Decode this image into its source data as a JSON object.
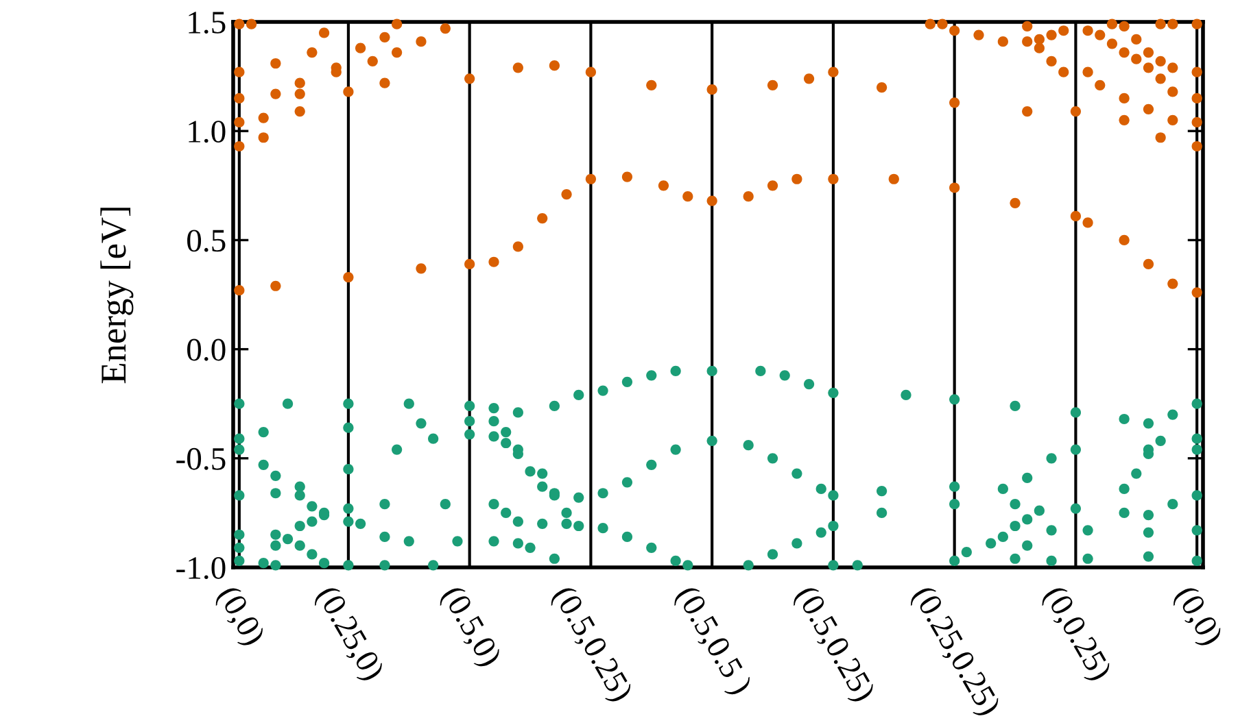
{
  "chart_data": {
    "type": "scatter",
    "ylabel": "Energy [eV]",
    "marker": "circle",
    "grid": "x",
    "ylim": [
      -1.0,
      1.5
    ],
    "categories": [
      "(0,0)",
      null,
      null,
      null,
      null,
      null,
      null,
      null,
      null,
      "(0.25,0)",
      null,
      null,
      null,
      null,
      null,
      null,
      null,
      null,
      null,
      "(0.5,0)",
      null,
      null,
      null,
      null,
      null,
      null,
      null,
      null,
      null,
      "(0.5,0.25)",
      null,
      null,
      null,
      null,
      null,
      null,
      null,
      null,
      null,
      "(0.5,0.5 )",
      null,
      null,
      null,
      null,
      null,
      null,
      null,
      null,
      null,
      "(0.5,0.25)",
      null,
      null,
      null,
      null,
      null,
      null,
      null,
      null,
      null,
      "(0.25,0.25)",
      null,
      null,
      null,
      null,
      null,
      null,
      null,
      null,
      null,
      "(0,0.25)",
      null,
      null,
      null,
      null,
      null,
      null,
      null,
      null,
      null,
      "(0,0)"
    ],
    "yticks": [
      {
        "value": -1.0,
        "label": "-1.0"
      },
      {
        "value": -0.5,
        "label": "-0.5"
      },
      {
        "value": 0.0,
        "label": "0.0"
      },
      0.5,
      {
        "value": 1.0,
        "label": "1.0"
      },
      1.5
    ],
    "series": [
      {
        "color": "#d95f02",
        "values": [
          0.27,
          null,
          null,
          0.29,
          null,
          null,
          null,
          null,
          null,
          0.33,
          null,
          null,
          null,
          null,
          null,
          0.37,
          null,
          null,
          null,
          0.39,
          null,
          0.4,
          null,
          0.47,
          null,
          0.6,
          null,
          0.71,
          null,
          0.78,
          null,
          null,
          0.79,
          null,
          null,
          0.75,
          null,
          0.7,
          null,
          0.68,
          null,
          null,
          0.7,
          null,
          0.75,
          null,
          0.78,
          null,
          null,
          0.78,
          null,
          null,
          null,
          null,
          0.78,
          null,
          null,
          null,
          null,
          0.74,
          null,
          null,
          null,
          null,
          0.67,
          null,
          null,
          null,
          null,
          0.61,
          0.58,
          null,
          null,
          0.5,
          null,
          0.39,
          null,
          0.3,
          null,
          0.26
        ]
      },
      {
        "color": "#d95f02",
        "values": [
          0.93,
          null,
          0.97,
          null,
          null,
          1.09,
          null,
          null,
          null,
          1.18,
          null,
          null,
          1.22,
          null,
          null,
          null,
          null,
          null,
          null,
          1.24,
          null,
          null,
          null,
          1.29,
          null,
          null,
          1.3,
          null,
          null,
          1.27,
          null,
          null,
          null,
          null,
          1.21,
          null,
          null,
          null,
          null,
          1.19,
          null,
          null,
          null,
          null,
          1.21,
          null,
          null,
          1.24,
          null,
          1.27,
          null,
          null,
          null,
          1.2,
          null,
          null,
          null,
          null,
          null,
          1.13,
          null,
          null,
          null,
          null,
          null,
          1.09,
          null,
          null,
          null,
          1.09,
          null,
          null,
          null,
          1.05,
          null,
          null,
          0.97,
          null,
          null,
          0.93
        ]
      },
      {
        "color": "#d95f02",
        "values": [
          1.04,
          null,
          1.06,
          null,
          null,
          1.17,
          null,
          null,
          1.29,
          null,
          null,
          1.32,
          null,
          1.36,
          null,
          1.41,
          null,
          1.47,
          null,
          null,
          null,
          null,
          null,
          null,
          null,
          null,
          null,
          null,
          null,
          null,
          null,
          null,
          null,
          null,
          null,
          null,
          null,
          null,
          null,
          null,
          null,
          null,
          null,
          null,
          null,
          null,
          null,
          null,
          null,
          null,
          null,
          null,
          null,
          null,
          null,
          null,
          null,
          null,
          null,
          null,
          null,
          null,
          null,
          null,
          null,
          null,
          null,
          null,
          null,
          null,
          null,
          null,
          null,
          null,
          null,
          null,
          null,
          null,
          null,
          null
        ]
      },
      {
        "color": "#d95f02",
        "values": [
          1.15,
          null,
          null,
          1.17,
          null,
          1.22,
          null,
          null,
          1.27,
          null,
          1.38,
          null,
          1.43,
          1.49,
          null,
          null,
          null,
          null,
          null,
          null,
          null,
          null,
          null,
          null,
          null,
          null,
          null,
          null,
          null,
          null,
          null,
          null,
          null,
          null,
          null,
          null,
          null,
          null,
          null,
          null,
          null,
          null,
          null,
          null,
          null,
          null,
          null,
          null,
          null,
          null,
          null,
          null,
          null,
          null,
          null,
          null,
          null,
          null,
          null,
          null,
          null,
          null,
          null,
          null,
          null,
          null,
          null,
          null,
          null,
          null,
          null,
          null,
          null,
          null,
          null,
          null,
          null,
          null,
          null,
          null
        ]
      },
      {
        "color": "#d95f02",
        "values": [
          1.27,
          null,
          null,
          1.31,
          null,
          null,
          1.36,
          1.45,
          null,
          null,
          null,
          null,
          null,
          null,
          null,
          null,
          null,
          null,
          null,
          null,
          null,
          null,
          null,
          null,
          null,
          null,
          null,
          null,
          null,
          null,
          null,
          null,
          null,
          null,
          null,
          null,
          null,
          null,
          null,
          null,
          null,
          null,
          null,
          null,
          null,
          null,
          null,
          null,
          null,
          null,
          null,
          null,
          null,
          null,
          null,
          null,
          null,
          null,
          null,
          null,
          null,
          null,
          null,
          null,
          null,
          null,
          null,
          null,
          null,
          null,
          null,
          null,
          null,
          null,
          null,
          null,
          null,
          null,
          null,
          null
        ]
      },
      {
        "color": "#d95f02",
        "values": [
          1.49,
          1.49,
          null,
          null,
          null,
          null,
          null,
          null,
          null,
          null,
          null,
          null,
          null,
          null,
          null,
          null,
          null,
          null,
          null,
          null,
          null,
          null,
          null,
          null,
          null,
          null,
          null,
          null,
          null,
          null,
          null,
          null,
          null,
          null,
          null,
          null,
          null,
          null,
          null,
          null,
          null,
          null,
          null,
          null,
          null,
          null,
          null,
          null,
          null,
          null,
          null,
          null,
          null,
          null,
          null,
          null,
          null,
          null,
          null,
          null,
          null,
          null,
          null,
          null,
          null,
          null,
          null,
          null,
          null,
          null,
          null,
          null,
          null,
          null,
          null,
          null,
          null,
          null,
          null,
          null
        ]
      },
      {
        "color": "#d95f02",
        "values": [
          null,
          null,
          null,
          null,
          null,
          null,
          null,
          null,
          null,
          null,
          null,
          null,
          null,
          null,
          null,
          null,
          null,
          null,
          null,
          null,
          null,
          null,
          null,
          null,
          null,
          null,
          null,
          null,
          null,
          null,
          null,
          null,
          null,
          null,
          null,
          null,
          null,
          null,
          null,
          null,
          null,
          null,
          null,
          null,
          null,
          null,
          null,
          null,
          null,
          null,
          null,
          null,
          null,
          null,
          null,
          null,
          null,
          null,
          null,
          null,
          null,
          null,
          null,
          null,
          null,
          1.48,
          1.38,
          1.32,
          1.27,
          null,
          1.27,
          1.21,
          null,
          1.15,
          null,
          1.1,
          null,
          1.05,
          null,
          1.04
        ]
      },
      {
        "color": "#d95f02",
        "values": [
          null,
          null,
          null,
          null,
          null,
          null,
          null,
          null,
          null,
          null,
          null,
          null,
          null,
          null,
          null,
          null,
          null,
          null,
          null,
          null,
          null,
          null,
          null,
          null,
          null,
          null,
          null,
          null,
          null,
          null,
          null,
          null,
          null,
          null,
          null,
          null,
          null,
          null,
          null,
          null,
          null,
          null,
          null,
          null,
          null,
          null,
          null,
          null,
          null,
          null,
          null,
          null,
          null,
          null,
          null,
          null,
          null,
          1.49,
          1.49,
          1.46,
          null,
          1.44,
          null,
          1.41,
          null,
          1.41,
          1.42,
          1.44,
          1.46,
          null,
          1.46,
          1.44,
          1.4,
          1.36,
          1.33,
          1.29,
          1.24,
          1.18,
          null,
          1.15
        ]
      },
      {
        "color": "#d95f02",
        "values": [
          null,
          null,
          null,
          null,
          null,
          null,
          null,
          null,
          null,
          null,
          null,
          null,
          null,
          null,
          null,
          null,
          null,
          null,
          null,
          null,
          null,
          null,
          null,
          null,
          null,
          null,
          null,
          null,
          null,
          null,
          null,
          null,
          null,
          null,
          null,
          null,
          null,
          null,
          null,
          null,
          null,
          null,
          null,
          null,
          null,
          null,
          null,
          null,
          null,
          null,
          null,
          null,
          null,
          null,
          null,
          null,
          null,
          null,
          null,
          null,
          null,
          null,
          null,
          null,
          null,
          null,
          null,
          null,
          null,
          null,
          null,
          null,
          1.49,
          1.48,
          1.42,
          1.36,
          1.32,
          1.29,
          null,
          1.27
        ]
      },
      {
        "color": "#d95f02",
        "values": [
          null,
          null,
          null,
          null,
          null,
          null,
          null,
          null,
          null,
          null,
          null,
          null,
          null,
          null,
          null,
          null,
          null,
          null,
          null,
          null,
          null,
          null,
          null,
          null,
          null,
          null,
          null,
          null,
          null,
          null,
          null,
          null,
          null,
          null,
          null,
          null,
          null,
          null,
          null,
          null,
          null,
          null,
          null,
          null,
          null,
          null,
          null,
          null,
          null,
          null,
          null,
          null,
          null,
          null,
          null,
          null,
          null,
          null,
          null,
          null,
          null,
          null,
          null,
          null,
          null,
          null,
          null,
          null,
          null,
          null,
          null,
          null,
          null,
          null,
          null,
          null,
          1.49,
          1.49,
          null,
          1.49
        ]
      },
      {
        "color": "#1b9e77",
        "values": [
          -0.25,
          null,
          null,
          null,
          -0.25,
          null,
          null,
          null,
          null,
          -0.25,
          null,
          null,
          null,
          null,
          -0.25,
          null,
          null,
          null,
          null,
          -0.26,
          null,
          -0.27,
          null,
          -0.29,
          null,
          null,
          -0.26,
          null,
          -0.21,
          null,
          -0.19,
          null,
          -0.15,
          null,
          -0.12,
          null,
          -0.1,
          null,
          null,
          -0.1,
          null,
          null,
          null,
          -0.1,
          null,
          -0.12,
          null,
          -0.16,
          null,
          -0.2,
          null,
          null,
          null,
          null,
          null,
          -0.21,
          null,
          null,
          null,
          -0.23,
          null,
          null,
          null,
          null,
          -0.26,
          null,
          null,
          null,
          null,
          -0.29,
          null,
          null,
          null,
          -0.32,
          null,
          -0.34,
          null,
          -0.3,
          null,
          -0.25
        ]
      },
      {
        "color": "#1b9e77",
        "values": [
          -0.41,
          null,
          -0.38,
          null,
          null,
          null,
          null,
          null,
          null,
          -0.36,
          null,
          null,
          null,
          null,
          null,
          -0.34,
          null,
          null,
          null,
          -0.33,
          null,
          -0.33,
          -0.38,
          -0.46,
          null,
          -0.57,
          -0.67,
          null,
          -0.68,
          null,
          -0.66,
          null,
          -0.61,
          null,
          -0.53,
          null,
          -0.46,
          null,
          null,
          -0.42,
          null,
          null,
          -0.44,
          null,
          -0.5,
          null,
          -0.57,
          null,
          -0.64,
          -0.67,
          null,
          null,
          null,
          -0.65,
          null,
          null,
          null,
          null,
          null,
          -0.63,
          null,
          null,
          null,
          -0.64,
          null,
          -0.59,
          null,
          -0.5,
          null,
          -0.46,
          null,
          null,
          null,
          null,
          null,
          -0.46,
          null,
          null,
          null,
          -0.46
        ]
      },
      {
        "color": "#1b9e77",
        "values": [
          -0.46,
          null,
          -0.53,
          -0.58,
          null,
          -0.63,
          null,
          null,
          null,
          -0.55,
          null,
          null,
          null,
          -0.46,
          null,
          null,
          -0.41,
          null,
          null,
          -0.39,
          null,
          -0.4,
          -0.43,
          -0.48,
          -0.56,
          -0.63,
          -0.66,
          -0.75,
          -0.81,
          null,
          -0.82,
          null,
          -0.86,
          null,
          -0.91,
          null,
          -0.97,
          -0.99,
          null,
          null,
          null,
          null,
          null,
          null,
          null,
          null,
          null,
          null,
          null,
          null,
          null,
          null,
          null,
          null,
          null,
          null,
          null,
          null,
          null,
          null,
          null,
          null,
          null,
          null,
          null,
          null,
          null,
          null,
          null,
          null,
          null,
          null,
          null,
          null,
          null,
          null,
          null,
          null,
          null,
          null
        ]
      },
      {
        "color": "#1b9e77",
        "values": [
          -0.85,
          null,
          null,
          -0.85,
          null,
          -0.81,
          -0.79,
          -0.76,
          null,
          -0.73,
          null,
          null,
          -0.71,
          null,
          null,
          null,
          null,
          -0.71,
          null,
          null,
          null,
          -0.71,
          -0.75,
          -0.79,
          null,
          -0.8,
          null,
          -0.8,
          null,
          null,
          null,
          null,
          null,
          null,
          null,
          null,
          null,
          null,
          null,
          null,
          null,
          null,
          null,
          null,
          null,
          null,
          null,
          null,
          null,
          null,
          null,
          null,
          null,
          null,
          null,
          null,
          null,
          null,
          null,
          null,
          null,
          null,
          null,
          null,
          null,
          null,
          null,
          null,
          null,
          null,
          null,
          null,
          null,
          null,
          null,
          null,
          null,
          null,
          null,
          null
        ]
      },
      {
        "color": "#1b9e77",
        "values": [
          -0.67,
          null,
          null,
          -0.66,
          null,
          -0.67,
          -0.72,
          -0.75,
          null,
          -0.79,
          -0.8,
          null,
          -0.86,
          null,
          -0.88,
          null,
          null,
          null,
          -0.88,
          null,
          null,
          -0.88,
          null,
          -0.89,
          -0.91,
          null,
          -0.96,
          null,
          null,
          null,
          null,
          null,
          null,
          null,
          null,
          null,
          null,
          null,
          null,
          null,
          null,
          null,
          null,
          null,
          null,
          null,
          null,
          null,
          null,
          null,
          null,
          null,
          null,
          null,
          null,
          null,
          null,
          null,
          null,
          null,
          null,
          null,
          null,
          null,
          null,
          null,
          null,
          null,
          null,
          null,
          null,
          null,
          null,
          null,
          null,
          null,
          null,
          null,
          null,
          null
        ]
      },
      {
        "color": "#1b9e77",
        "values": [
          -0.97,
          null,
          -0.98,
          -0.99,
          null,
          -0.9,
          -0.94,
          -0.98,
          null,
          -0.99,
          null,
          null,
          -0.99,
          null,
          null,
          null,
          -0.99,
          null,
          null,
          null,
          null,
          null,
          null,
          null,
          null,
          null,
          null,
          null,
          null,
          null,
          null,
          null,
          null,
          null,
          null,
          null,
          null,
          null,
          null,
          null,
          null,
          null,
          null,
          null,
          null,
          null,
          null,
          null,
          null,
          null,
          null,
          null,
          null,
          null,
          null,
          null,
          null,
          null,
          null,
          null,
          null,
          null,
          null,
          null,
          null,
          null,
          null,
          null,
          null,
          null,
          null,
          null,
          null,
          null,
          null,
          null,
          null,
          null,
          null,
          null
        ]
      },
      {
        "color": "#1b9e77",
        "values": [
          -0.91,
          null,
          null,
          -0.9,
          -0.87,
          null,
          null,
          null,
          null,
          null,
          null,
          null,
          null,
          null,
          null,
          null,
          null,
          null,
          null,
          null,
          null,
          null,
          null,
          null,
          null,
          null,
          null,
          null,
          null,
          null,
          null,
          null,
          null,
          null,
          null,
          null,
          null,
          null,
          null,
          null,
          null,
          null,
          null,
          null,
          null,
          null,
          null,
          null,
          null,
          null,
          null,
          null,
          null,
          null,
          null,
          null,
          null,
          null,
          null,
          null,
          null,
          null,
          null,
          null,
          null,
          null,
          null,
          null,
          null,
          null,
          null,
          null,
          null,
          null,
          null,
          null,
          null,
          null,
          null,
          null
        ]
      },
      {
        "color": "#1b9e77",
        "values": [
          null,
          null,
          null,
          null,
          null,
          null,
          null,
          null,
          null,
          null,
          null,
          null,
          null,
          null,
          null,
          null,
          null,
          null,
          null,
          null,
          null,
          null,
          null,
          null,
          null,
          null,
          null,
          null,
          null,
          null,
          null,
          null,
          null,
          null,
          null,
          null,
          null,
          null,
          null,
          null,
          null,
          null,
          -0.99,
          null,
          -0.94,
          null,
          -0.89,
          null,
          -0.84,
          -0.81,
          null,
          null,
          null,
          -0.75,
          null,
          null,
          null,
          null,
          null,
          -0.71,
          null,
          null,
          null,
          null,
          -0.71,
          null,
          null,
          null,
          null,
          -0.73,
          null,
          null,
          null,
          -0.75,
          null,
          -0.76,
          null,
          -0.71,
          null,
          -0.67
        ]
      },
      {
        "color": "#1b9e77",
        "values": [
          null,
          null,
          null,
          null,
          null,
          null,
          null,
          null,
          null,
          null,
          null,
          null,
          null,
          null,
          null,
          null,
          null,
          null,
          null,
          null,
          null,
          null,
          null,
          null,
          null,
          null,
          null,
          null,
          null,
          null,
          null,
          null,
          null,
          null,
          null,
          null,
          null,
          null,
          null,
          null,
          null,
          null,
          null,
          null,
          null,
          null,
          null,
          null,
          null,
          null,
          null,
          null,
          null,
          null,
          null,
          null,
          null,
          null,
          null,
          -0.97,
          -0.93,
          null,
          -0.89,
          -0.86,
          -0.81,
          -0.78,
          -0.74,
          null,
          null,
          null,
          null,
          null,
          null,
          null,
          null,
          null,
          null,
          null,
          null,
          null
        ]
      },
      {
        "color": "#1b9e77",
        "values": [
          null,
          null,
          null,
          null,
          null,
          null,
          null,
          null,
          null,
          null,
          null,
          null,
          null,
          null,
          null,
          null,
          null,
          null,
          null,
          null,
          null,
          null,
          null,
          null,
          null,
          null,
          null,
          null,
          null,
          null,
          null,
          null,
          null,
          null,
          null,
          null,
          null,
          null,
          null,
          null,
          null,
          null,
          null,
          null,
          null,
          null,
          null,
          null,
          null,
          null,
          null,
          null,
          null,
          null,
          null,
          null,
          null,
          null,
          null,
          null,
          null,
          null,
          null,
          null,
          -0.96,
          -0.9,
          null,
          -0.83,
          null,
          null,
          -0.83,
          null,
          null,
          null,
          null,
          -0.84,
          null,
          null,
          null,
          -0.83
        ]
      },
      {
        "color": "#1b9e77",
        "values": [
          null,
          null,
          null,
          null,
          null,
          null,
          null,
          null,
          null,
          null,
          null,
          null,
          null,
          null,
          null,
          null,
          null,
          null,
          null,
          null,
          null,
          null,
          null,
          null,
          null,
          null,
          null,
          null,
          null,
          null,
          null,
          null,
          null,
          null,
          null,
          null,
          null,
          null,
          null,
          null,
          null,
          null,
          null,
          null,
          null,
          null,
          null,
          null,
          null,
          null,
          null,
          null,
          null,
          null,
          null,
          null,
          null,
          null,
          null,
          null,
          null,
          null,
          null,
          null,
          null,
          null,
          null,
          -0.97,
          null,
          null,
          -0.96,
          null,
          null,
          null,
          null,
          -0.95,
          null,
          null,
          null,
          -0.97
        ]
      },
      {
        "color": "#1b9e77",
        "values": [
          null,
          null,
          null,
          null,
          null,
          null,
          null,
          null,
          null,
          null,
          null,
          null,
          null,
          null,
          null,
          null,
          null,
          null,
          null,
          null,
          null,
          null,
          null,
          null,
          null,
          null,
          null,
          null,
          null,
          null,
          null,
          null,
          null,
          null,
          null,
          null,
          null,
          null,
          null,
          null,
          null,
          null,
          null,
          null,
          null,
          null,
          null,
          null,
          null,
          null,
          null,
          null,
          null,
          null,
          null,
          null,
          null,
          null,
          null,
          null,
          null,
          null,
          null,
          null,
          null,
          null,
          null,
          null,
          null,
          null,
          null,
          null,
          null,
          -0.64,
          -0.57,
          -0.48,
          -0.42,
          null,
          null,
          -0.41
        ]
      },
      {
        "color": "#1b9e77",
        "values": [
          null,
          null,
          null,
          null,
          null,
          null,
          null,
          null,
          null,
          null,
          null,
          null,
          null,
          null,
          null,
          null,
          null,
          null,
          null,
          null,
          null,
          null,
          null,
          null,
          null,
          null,
          null,
          null,
          null,
          null,
          null,
          null,
          null,
          null,
          null,
          null,
          null,
          null,
          null,
          null,
          null,
          null,
          null,
          null,
          null,
          null,
          null,
          null,
          null,
          -0.99,
          null,
          -0.99,
          null,
          null,
          null,
          null,
          null,
          null,
          null,
          null,
          null,
          null,
          null,
          null,
          null,
          null,
          null,
          null,
          null,
          null,
          null,
          null,
          null,
          null,
          null,
          null,
          null,
          null,
          null,
          null
        ]
      }
    ]
  }
}
